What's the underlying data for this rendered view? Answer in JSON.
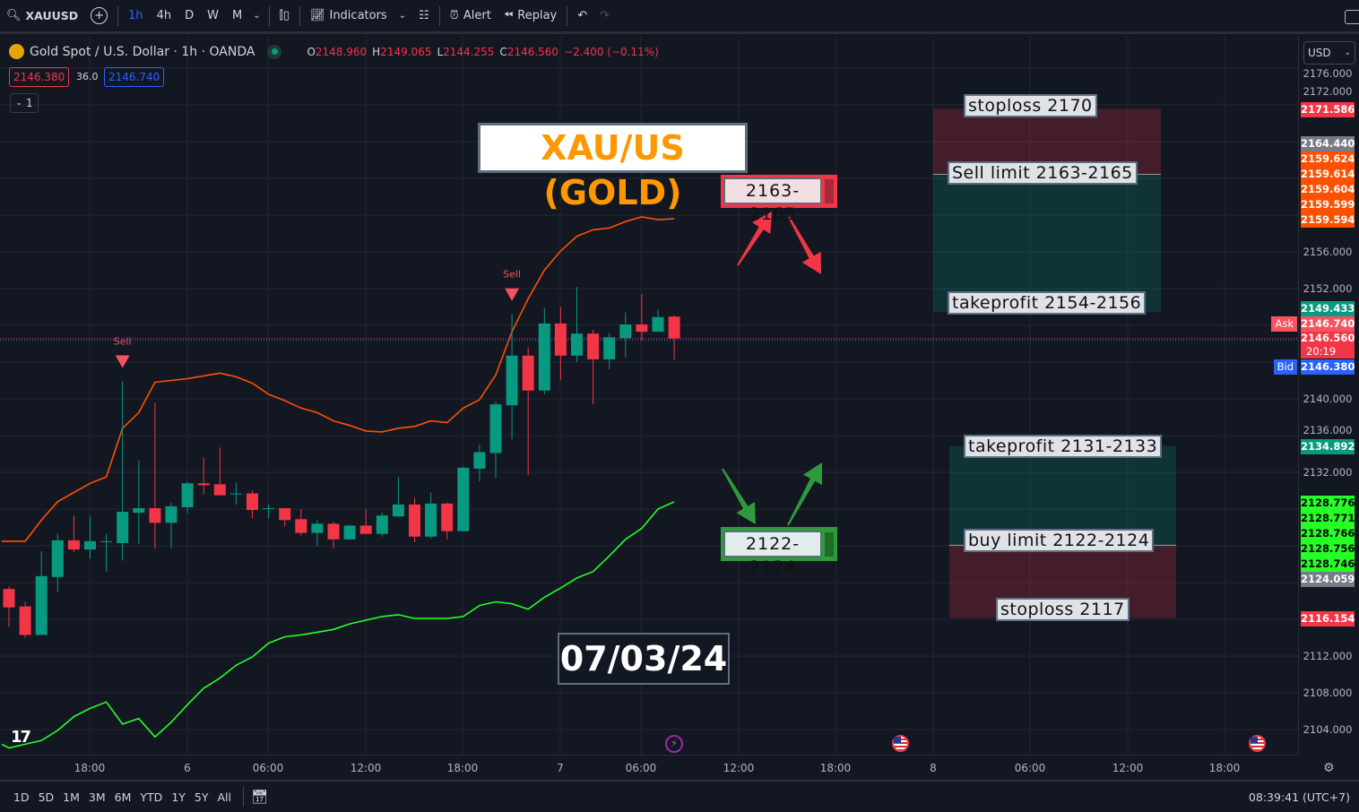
{
  "toolbar": {
    "symbol": "XAUUSD",
    "timeframes": [
      "1h",
      "4h",
      "D",
      "W",
      "M"
    ],
    "active_timeframe": "1h",
    "indicators_label": "Indicators",
    "alert_label": "Alert",
    "replay_label": "Replay"
  },
  "legend": {
    "title": "Gold Spot / U.S. Dollar · 1h · OANDA",
    "ohlc": [
      {
        "k": "O",
        "v": "2148.960"
      },
      {
        "k": "H",
        "v": "2149.065"
      },
      {
        "k": "L",
        "v": "2144.255"
      },
      {
        "k": "C",
        "v": "2146.560"
      }
    ],
    "change": "−2.400 (−0.11%)",
    "bid_box": "2146.380",
    "spread": "36.0",
    "ask_box": "2146.740",
    "collapse_count": "1"
  },
  "colors": {
    "up": "#089981",
    "down": "#f23645",
    "upper_band": "#ff5000",
    "lower_band": "#26ff26",
    "accent": "#2962ff",
    "title_text": "#ff9800"
  },
  "currency": "USD",
  "price_axis": {
    "ticks": [
      "2176.000",
      "2172.000",
      "2156.000",
      "2152.000",
      "2140.000",
      "2136.000",
      "2132.000",
      "2112.000",
      "2108.000",
      "2104.000"
    ],
    "tick_values": [
      2176,
      2172,
      2156,
      2152,
      2140,
      2136,
      2132,
      2112,
      2108,
      2104
    ],
    "labels": [
      {
        "text": "2171.586",
        "bg": "#f23645",
        "fg": "#ffffff"
      },
      {
        "text": "2164.440",
        "bg": "#787b86",
        "fg": "#ffffff"
      },
      {
        "text": "2159.624",
        "bg": "#ff5000",
        "fg": "#ffffff"
      },
      {
        "text": "2159.614",
        "bg": "#ff5000",
        "fg": "#ffffff"
      },
      {
        "text": "2159.604",
        "bg": "#ff5000",
        "fg": "#ffffff"
      },
      {
        "text": "2159.599",
        "bg": "#ff5000",
        "fg": "#ffffff"
      },
      {
        "text": "2159.594",
        "bg": "#ff5000",
        "fg": "#ffffff"
      },
      {
        "text": "2149.433",
        "bg": "#089981",
        "fg": "#ffffff"
      },
      {
        "text": "2146.740",
        "bg": "#f7525f",
        "fg": "#ffffff"
      },
      {
        "text": "2146.560",
        "bg": "#f23645",
        "fg": "#ffffff"
      },
      {
        "text": "2146.380",
        "bg": "#2962ff",
        "fg": "#ffffff"
      },
      {
        "text": "2134.892",
        "bg": "#089981",
        "fg": "#ffffff"
      },
      {
        "text": "2128.776",
        "bg": "#26ff26",
        "fg": "#000000"
      },
      {
        "text": "2128.771",
        "bg": "#26ff26",
        "fg": "#000000"
      },
      {
        "text": "2128.766",
        "bg": "#26ff26",
        "fg": "#000000"
      },
      {
        "text": "2128.756",
        "bg": "#26ff26",
        "fg": "#000000"
      },
      {
        "text": "2128.746",
        "bg": "#26ff26",
        "fg": "#000000"
      },
      {
        "text": "2124.059",
        "bg": "#787b86",
        "fg": "#ffffff"
      },
      {
        "text": "2116.154",
        "bg": "#f23645",
        "fg": "#ffffff"
      }
    ],
    "countdown": "20:19",
    "ask_tag": "Ask",
    "bid_tag": "Bid"
  },
  "time_axis": [
    "18:00",
    "6",
    "06:00",
    "12:00",
    "18:00",
    "7",
    "06:00",
    "12:00",
    "18:00",
    "8",
    "06:00",
    "12:00",
    "18:00"
  ],
  "range_buttons": [
    "1D",
    "5D",
    "1M",
    "3M",
    "6M",
    "YTD",
    "1Y",
    "5Y",
    "All"
  ],
  "clock": "08:39:41 (UTC+7)",
  "annotations": {
    "title": "XAU/US (GOLD)",
    "sell_zone_label": "2163-2165",
    "buy_zone_label": "2122-2124",
    "date": "07/03/24",
    "sell_stoploss": "stoploss 2170",
    "sell_limit": "Sell limit 2163-2165",
    "sell_takeprofit": "takeprofit 2154-2156",
    "buy_takeprofit": "takeprofit 2131-2133",
    "buy_limit": "buy limit 2122-2124",
    "buy_stoploss": "stoploss 2117",
    "signal_label": "Sell"
  },
  "chart_data": {
    "type": "candlestick",
    "interval": "1h",
    "open": [
      2119.3,
      2117.4,
      2114.3,
      2120.6,
      2124.6,
      2123.6,
      2124.5,
      2124.3,
      2127.6,
      2128.1,
      2126.5,
      2128.2,
      2130.8,
      2130.7,
      2129.7,
      2129.7,
      2128.1,
      2128.1,
      2126.9,
      2125.4,
      2126.4,
      2124.7,
      2126.2,
      2125.3,
      2127.2,
      2128.5,
      2125.0,
      2128.6,
      2125.6,
      2132.4,
      2134.1,
      2139.3,
      2144.7,
      2140.9,
      2148.2,
      2144.7,
      2147.1,
      2144.3,
      2146.6,
      2148.1,
      2147.3,
      2148.96
    ],
    "high": [
      2119.6,
      2117.9,
      2123.4,
      2125.3,
      2127.3,
      2127.2,
      2125.3,
      2141.9,
      2133.3,
      2139.6,
      2128.7,
      2131.0,
      2133.6,
      2134.7,
      2130.9,
      2130.0,
      2128.5,
      2128.1,
      2128.0,
      2126.8,
      2126.6,
      2126.3,
      2128.0,
      2127.6,
      2131.5,
      2129.2,
      2129.8,
      2128.7,
      2132.6,
      2135.0,
      2139.7,
      2149.2,
      2145.6,
      2149.9,
      2150.0,
      2152.2,
      2147.5,
      2147.2,
      2149.4,
      2151.4,
      2149.7,
      2149.065
    ],
    "low": [
      2115.2,
      2114.0,
      2114.3,
      2119.0,
      2123.3,
      2122.6,
      2121.2,
      2122.4,
      2124.2,
      2123.7,
      2123.7,
      2127.5,
      2129.6,
      2129.5,
      2128.5,
      2127.0,
      2127.0,
      2126.1,
      2125.1,
      2123.9,
      2123.7,
      2124.7,
      2125.3,
      2125.0,
      2127.1,
      2124.4,
      2124.8,
      2124.7,
      2125.6,
      2131.0,
      2131.4,
      2135.6,
      2131.7,
      2140.5,
      2142.0,
      2144.0,
      2139.4,
      2143.2,
      2144.5,
      2146.3,
      2147.3,
      2144.255
    ],
    "close": [
      2117.3,
      2114.3,
      2120.7,
      2124.6,
      2123.6,
      2124.5,
      2124.5,
      2127.7,
      2128.1,
      2126.5,
      2128.3,
      2130.8,
      2130.6,
      2129.5,
      2129.7,
      2127.9,
      2128.1,
      2126.8,
      2125.4,
      2126.4,
      2124.7,
      2126.2,
      2125.3,
      2127.3,
      2128.5,
      2125.0,
      2128.6,
      2125.6,
      2132.5,
      2134.2,
      2139.4,
      2144.7,
      2140.9,
      2148.2,
      2144.7,
      2147.1,
      2144.3,
      2146.7,
      2148.1,
      2147.3,
      2148.9,
      2146.56
    ],
    "upper_band": [
      2124.5,
      2124.5,
      2126.8,
      2128.8,
      2129.8,
      2130.8,
      2131.5,
      2136.8,
      2138.5,
      2141.8,
      2142.0,
      2142.2,
      2142.5,
      2142.8,
      2142.4,
      2141.7,
      2140.5,
      2139.8,
      2139.0,
      2138.5,
      2137.6,
      2137.1,
      2136.5,
      2136.4,
      2136.8,
      2137.0,
      2137.6,
      2137.4,
      2139.0,
      2139.9,
      2142.6,
      2147.3,
      2150.9,
      2154.0,
      2156.1,
      2157.7,
      2158.4,
      2158.6,
      2159.3,
      2159.8,
      2159.5,
      2159.6
    ],
    "lower_band": [
      2102.0,
      2102.4,
      2102.8,
      2103.9,
      2105.4,
      2106.3,
      2107.0,
      2104.6,
      2105.2,
      2103.2,
      2104.8,
      2106.7,
      2108.5,
      2109.6,
      2111.0,
      2111.9,
      2113.4,
      2114.1,
      2114.3,
      2114.6,
      2114.9,
      2115.5,
      2115.9,
      2116.3,
      2116.5,
      2116.1,
      2116.1,
      2116.1,
      2116.3,
      2117.5,
      2117.9,
      2117.7,
      2117.1,
      2118.4,
      2119.4,
      2120.5,
      2121.2,
      2122.9,
      2124.7,
      2125.9,
      2128.0,
      2128.8
    ],
    "sell_signals": [
      8,
      32
    ],
    "last_price": 2146.56,
    "ask": 2146.74,
    "bid": 2146.38,
    "sell_position": {
      "stop": 2171.586,
      "entry": 2164.44,
      "target": 2149.433
    },
    "buy_position": {
      "target": 2134.892,
      "entry": 2124.059,
      "stop": 2116.154
    },
    "y_range": [
      2100,
      2178
    ],
    "grid": true
  }
}
